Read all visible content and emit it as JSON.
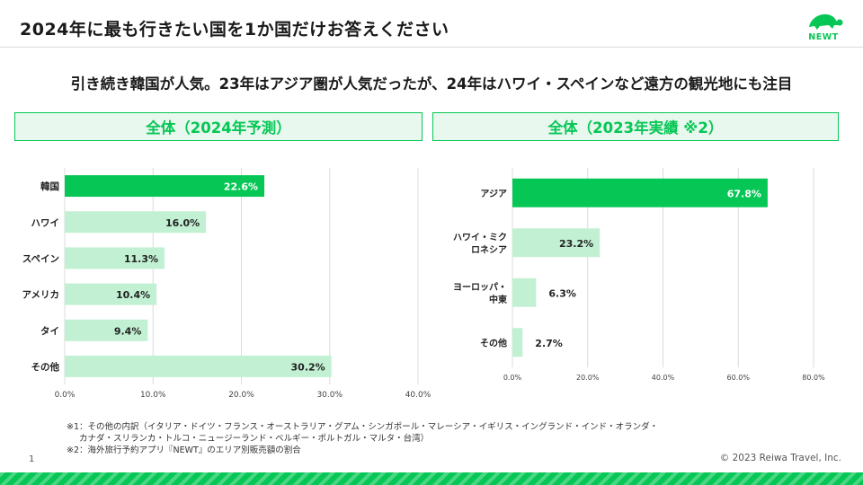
{
  "slide": {
    "title": "2024年に最も行きたい国を1か国だけお答えください",
    "subtitle": "引き続き韓国が人気。23年はアジア圏が人気だったが、24年はハワイ・スペインなど遠方の観光地にも注目",
    "logo_text": "NEWT",
    "footnote_1_line1": "※1：その他の内訳（イタリア・ドイツ・フランス・オーストラリア・グアム・シンガポール・マレーシア・イギリス・イングランド・インド・オランダ・",
    "footnote_1_line2": "カナダ・スリランカ・トルコ・ニュージーランド・ベルギー・ポルトガル・マルタ・台湾）",
    "footnote_2": "※2：海外旅行予約アプリ『NEWT』のエリア別販売額の割合",
    "page_number": "1",
    "copyright": "© 2023 Reiwa Travel, Inc.",
    "colors": {
      "accent": "#06c755",
      "light": "#c2f0d3",
      "header_bg": "#e8f8ee"
    }
  },
  "chart_data": [
    {
      "type": "bar",
      "orientation": "horizontal",
      "title": "全体（2024年予測）",
      "categories": [
        "韓国",
        "ハワイ",
        "スペイン",
        "アメリカ",
        "タイ",
        "その他"
      ],
      "values": [
        22.6,
        16.0,
        11.3,
        10.4,
        9.4,
        30.2
      ],
      "value_labels": [
        "22.6%",
        "16.0%",
        "11.3%",
        "10.4%",
        "9.4%",
        "30.2%"
      ],
      "highlight_index": 0,
      "xlim": [
        0,
        40
      ],
      "ticks": [
        0,
        10,
        20,
        30,
        40
      ],
      "tick_labels": [
        "0.0%",
        "10.0%",
        "20.0%",
        "30.0%",
        "40.0%"
      ],
      "grid": true
    },
    {
      "type": "bar",
      "orientation": "horizontal",
      "title": "全体（2023年実績 ※2）",
      "categories": [
        [
          "アジア"
        ],
        [
          "ハワイ・ミク",
          "ロネシア"
        ],
        [
          "ヨーロッパ・",
          "中東"
        ],
        [
          "その他"
        ]
      ],
      "values": [
        67.8,
        23.2,
        6.3,
        2.7
      ],
      "value_labels": [
        "67.8%",
        "23.2%",
        "6.3%",
        "2.7%"
      ],
      "highlight_index": 0,
      "xlim": [
        0,
        80
      ],
      "ticks": [
        0,
        20,
        40,
        60,
        80
      ],
      "tick_labels": [
        "0.0%",
        "20.0%",
        "40.0%",
        "60.0%",
        "80.0%"
      ],
      "grid": true
    }
  ]
}
